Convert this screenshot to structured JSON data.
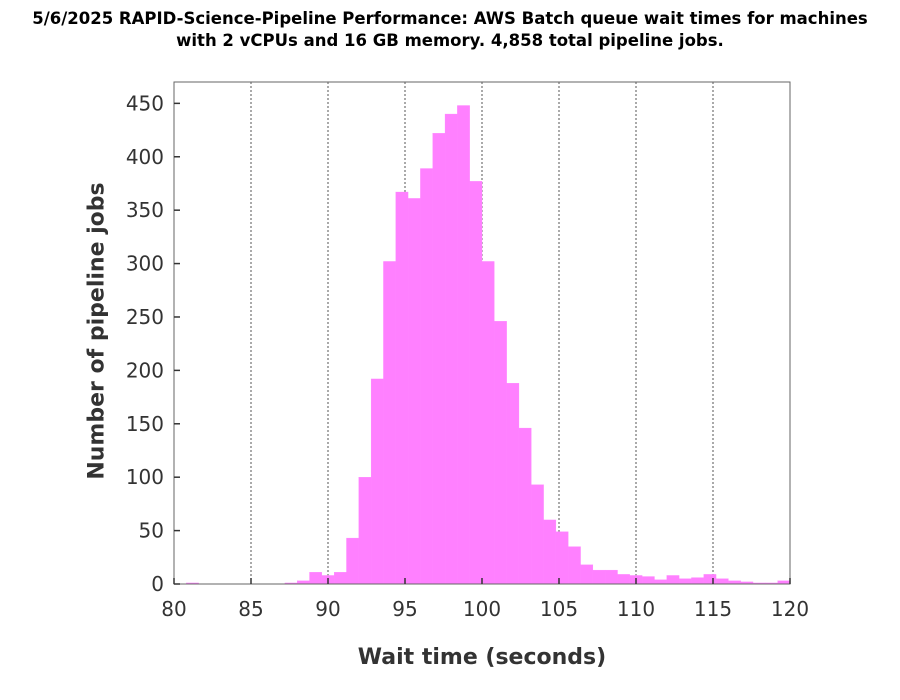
{
  "chart_data": {
    "type": "bar",
    "title_lines": [
      "5/6/2025 RAPID-Science-Pipeline Performance: AWS Batch queue wait times for machines",
      "with 2 vCPUs and 16 GB memory.  4,858 total pipeline jobs."
    ],
    "xlabel": "Wait time (seconds)",
    "ylabel": "Number of pipeline jobs",
    "xlim": [
      80,
      120
    ],
    "ylim": [
      0,
      470
    ],
    "xticks": [
      80,
      85,
      90,
      95,
      100,
      105,
      110,
      115,
      120
    ],
    "yticks": [
      0,
      50,
      100,
      150,
      200,
      250,
      300,
      350,
      400,
      450
    ],
    "vertical_gridlines_at": [
      85,
      90,
      95,
      100,
      105,
      110,
      115
    ],
    "grid": "vertical dotted",
    "bin_width": 0.8,
    "bins": [
      {
        "x0": 80.0,
        "count": 0
      },
      {
        "x0": 80.8,
        "count": 1
      },
      {
        "x0": 81.6,
        "count": 0
      },
      {
        "x0": 82.4,
        "count": 0
      },
      {
        "x0": 83.2,
        "count": 0
      },
      {
        "x0": 84.0,
        "count": 0
      },
      {
        "x0": 84.8,
        "count": 0
      },
      {
        "x0": 85.6,
        "count": 0
      },
      {
        "x0": 86.4,
        "count": 0
      },
      {
        "x0": 87.2,
        "count": 1
      },
      {
        "x0": 88.0,
        "count": 3
      },
      {
        "x0": 88.8,
        "count": 11
      },
      {
        "x0": 89.6,
        "count": 8
      },
      {
        "x0": 90.4,
        "count": 11
      },
      {
        "x0": 91.2,
        "count": 43
      },
      {
        "x0": 92.0,
        "count": 100
      },
      {
        "x0": 92.8,
        "count": 192
      },
      {
        "x0": 93.6,
        "count": 302
      },
      {
        "x0": 94.4,
        "count": 367
      },
      {
        "x0": 95.2,
        "count": 361
      },
      {
        "x0": 96.0,
        "count": 389
      },
      {
        "x0": 96.8,
        "count": 422
      },
      {
        "x0": 97.6,
        "count": 440
      },
      {
        "x0": 98.4,
        "count": 448
      },
      {
        "x0": 99.2,
        "count": 377
      },
      {
        "x0": 100.0,
        "count": 302
      },
      {
        "x0": 100.8,
        "count": 246
      },
      {
        "x0": 101.6,
        "count": 188
      },
      {
        "x0": 102.4,
        "count": 146
      },
      {
        "x0": 103.2,
        "count": 93
      },
      {
        "x0": 104.0,
        "count": 60
      },
      {
        "x0": 104.8,
        "count": 49
      },
      {
        "x0": 105.6,
        "count": 35
      },
      {
        "x0": 106.4,
        "count": 18
      },
      {
        "x0": 107.2,
        "count": 13
      },
      {
        "x0": 108.0,
        "count": 13
      },
      {
        "x0": 108.8,
        "count": 9
      },
      {
        "x0": 109.6,
        "count": 8
      },
      {
        "x0": 110.4,
        "count": 7
      },
      {
        "x0": 111.2,
        "count": 4
      },
      {
        "x0": 112.0,
        "count": 8
      },
      {
        "x0": 112.8,
        "count": 5
      },
      {
        "x0": 113.6,
        "count": 6
      },
      {
        "x0": 114.4,
        "count": 9
      },
      {
        "x0": 115.2,
        "count": 5
      },
      {
        "x0": 116.0,
        "count": 3
      },
      {
        "x0": 116.8,
        "count": 2
      },
      {
        "x0": 117.6,
        "count": 1
      },
      {
        "x0": 118.4,
        "count": 1
      },
      {
        "x0": 119.2,
        "count": 3
      }
    ],
    "bar_color": "#ff80ff",
    "axis_color": "#333333",
    "grid_color": "#555555"
  }
}
